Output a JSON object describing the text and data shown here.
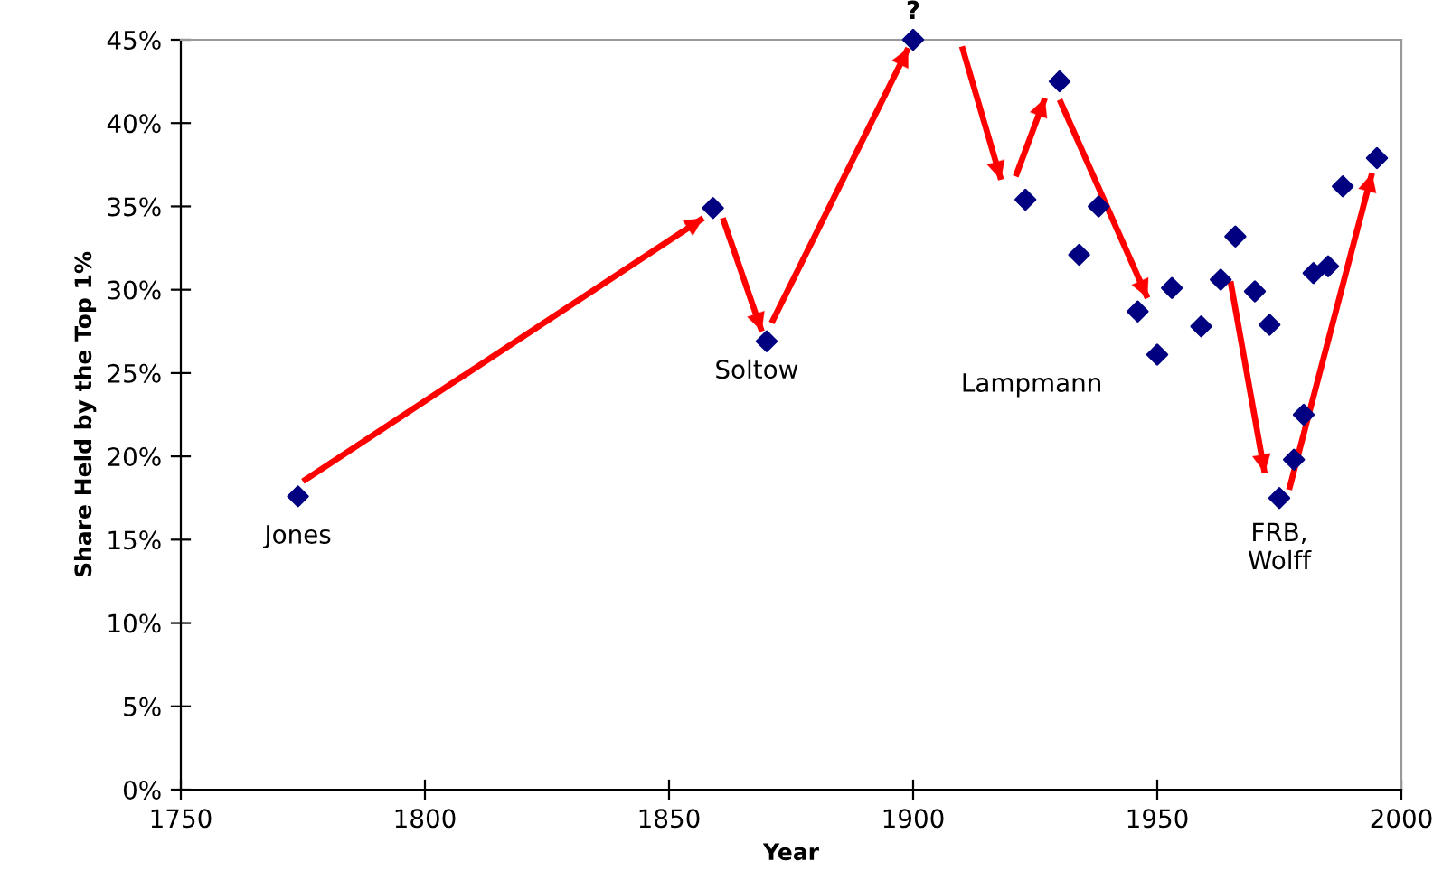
{
  "chart_data": {
    "type": "scatter",
    "xlabel": "Year",
    "ylabel": "Share Held by the Top 1%",
    "series": [
      {
        "color": "#000080",
        "marker": "diamond",
        "x": [
          1774,
          1859,
          1870,
          1900,
          1923,
          1930,
          1934,
          1938,
          1946,
          1950,
          1953,
          1959,
          1963,
          1966,
          1970,
          1973,
          1975,
          1978,
          1980,
          1982,
          1985,
          1988,
          1995
        ],
        "values": [
          17.6,
          34.9,
          26.9,
          45,
          35.4,
          42.5,
          32.1,
          35.0,
          28.7,
          26.1,
          30.1,
          27.8,
          30.6,
          33.2,
          29.9,
          27.9,
          17.5,
          19.8,
          22.5,
          31.0,
          31.4,
          36.2,
          37.9
        ]
      },
      {
        "type": "line",
        "color": "#ff0000",
        "x": [
          1775,
          1857,
          null,
          1861,
          1869,
          null,
          1871,
          1899,
          null,
          1910,
          1918,
          null,
          1921,
          1927,
          null,
          1930,
          1948,
          null,
          1965,
          1972,
          null,
          1977,
          1994
        ],
        "values": [
          18.5,
          34.3,
          null,
          34.3,
          27.5,
          null,
          28,
          44.5,
          null,
          44.6,
          36.6,
          null,
          36.8,
          41.5,
          null,
          41.4,
          29.5,
          null,
          30.5,
          19,
          null,
          18,
          37
        ]
      }
    ],
    "xlim": [
      1750,
      2000
    ],
    "xticks": [
      1750,
      1800,
      1850,
      1900,
      1950,
      2000
    ],
    "ylim": [
      0,
      45
    ],
    "yticks": [
      {
        "value": 0,
        "label": "0%"
      },
      {
        "value": 5,
        "label": "5%"
      },
      {
        "value": 10,
        "label": "10%"
      },
      {
        "value": 15,
        "label": "15%"
      },
      {
        "value": 20,
        "label": "20%"
      },
      {
        "value": 25,
        "label": "25%"
      },
      {
        "value": 30,
        "label": "30%"
      },
      {
        "value": 35,
        "label": "35%"
      },
      {
        "value": 40,
        "label": "40%"
      },
      {
        "value": 45,
        "label": "45%"
      }
    ],
    "grid": false,
    "legend": false,
    "annotations": [
      {
        "text": "Jones",
        "x": 1774,
        "y": 17.6
      },
      {
        "text": "Soltow",
        "x": 1870,
        "y": 26.9
      },
      {
        "text": "?",
        "x": 1900,
        "y": 45
      },
      {
        "text": "Lampmann",
        "x": 1950,
        "y": 26.1
      },
      {
        "text": "FRB,\nWolff",
        "x": 1975,
        "y": 17.5
      }
    ]
  }
}
